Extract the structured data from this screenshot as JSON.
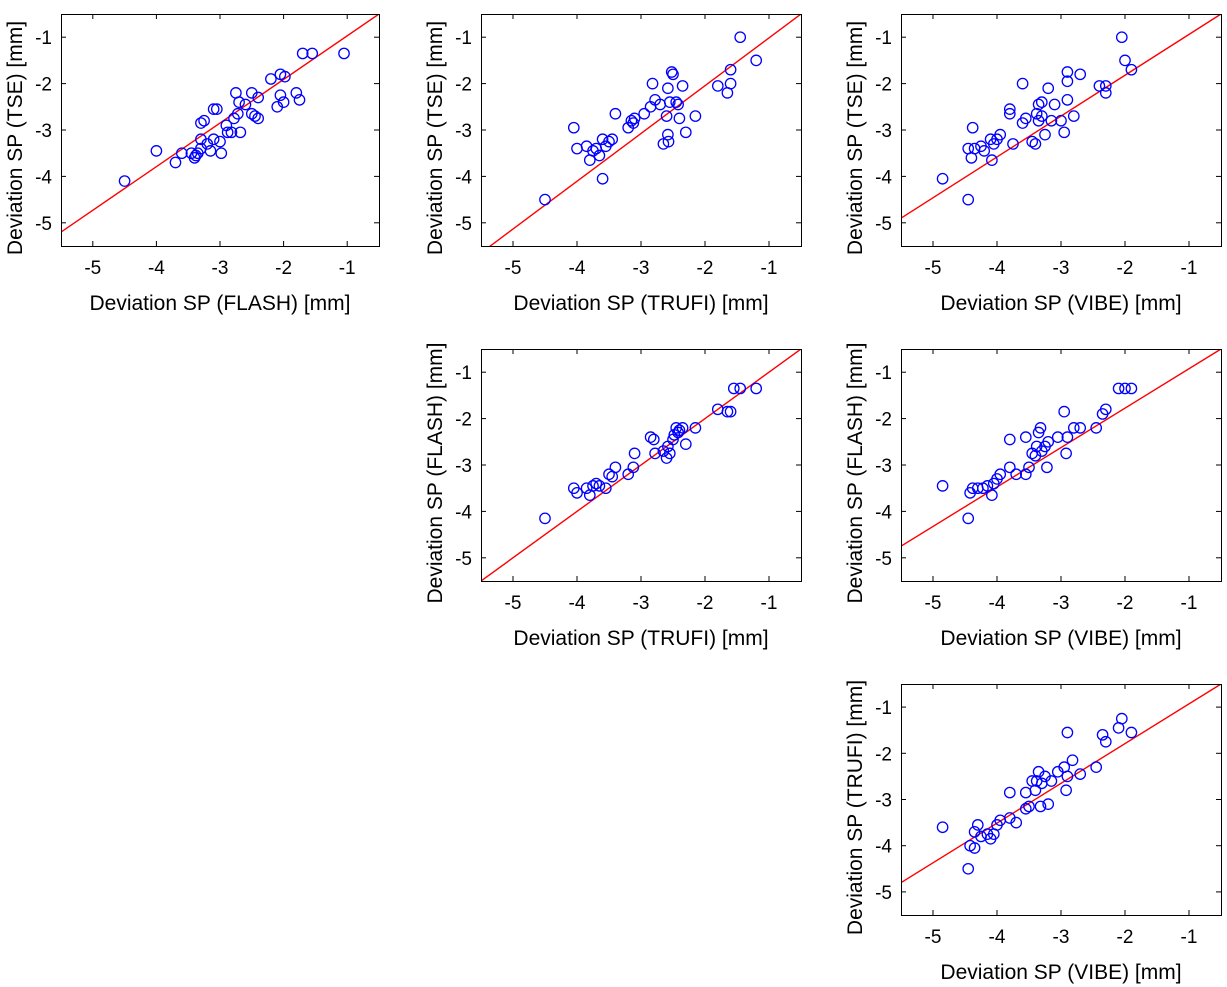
{
  "colors": {
    "points": "#0000ff",
    "fit_line": "#ff0000",
    "axes": "#000000"
  },
  "chart_data": [
    {
      "type": "scatter",
      "xlabel": "Deviation SP (FLASH) [mm]",
      "ylabel": "Deviation SP (TSE) [mm]",
      "xlim": [
        -5.5,
        -0.5
      ],
      "ylim": [
        -5.5,
        -0.5
      ],
      "xticks": [
        "-5",
        "-4",
        "-3",
        "-2",
        "-1"
      ],
      "yticks": [
        "-1",
        "-2",
        "-3",
        "-4",
        "-5"
      ],
      "fit_line": [
        [
          -5.5,
          -5.2
        ],
        [
          -0.5,
          -0.5
        ]
      ],
      "points": [
        [
          -4.5,
          -4.1
        ],
        [
          -4.0,
          -3.45
        ],
        [
          -3.7,
          -3.7
        ],
        [
          -3.6,
          -3.5
        ],
        [
          -3.45,
          -3.5
        ],
        [
          -3.4,
          -3.6
        ],
        [
          -3.38,
          -3.55
        ],
        [
          -3.35,
          -3.5
        ],
        [
          -3.3,
          -3.4
        ],
        [
          -3.3,
          -3.2
        ],
        [
          -3.3,
          -2.85
        ],
        [
          -3.25,
          -2.8
        ],
        [
          -3.2,
          -3.3
        ],
        [
          -3.15,
          -3.45
        ],
        [
          -3.1,
          -3.2
        ],
        [
          -3.1,
          -2.55
        ],
        [
          -3.05,
          -2.55
        ],
        [
          -3.0,
          -3.25
        ],
        [
          -2.98,
          -3.5
        ],
        [
          -2.9,
          -2.9
        ],
        [
          -2.88,
          -3.05
        ],
        [
          -2.82,
          -3.05
        ],
        [
          -2.78,
          -2.75
        ],
        [
          -2.75,
          -2.2
        ],
        [
          -2.72,
          -2.65
        ],
        [
          -2.7,
          -2.4
        ],
        [
          -2.68,
          -3.05
        ],
        [
          -2.6,
          -2.45
        ],
        [
          -2.5,
          -2.2
        ],
        [
          -2.5,
          -2.65
        ],
        [
          -2.45,
          -2.7
        ],
        [
          -2.4,
          -2.3
        ],
        [
          -2.4,
          -2.75
        ],
        [
          -2.2,
          -1.9
        ],
        [
          -2.1,
          -2.5
        ],
        [
          -2.05,
          -1.8
        ],
        [
          -2.05,
          -2.25
        ],
        [
          -2.0,
          -2.4
        ],
        [
          -1.98,
          -1.85
        ],
        [
          -1.8,
          -2.2
        ],
        [
          -1.75,
          -2.35
        ],
        [
          -1.7,
          -1.35
        ],
        [
          -1.55,
          -1.35
        ],
        [
          -1.05,
          -1.35
        ]
      ]
    },
    {
      "type": "scatter",
      "xlabel": "Deviation SP (TRUFI) [mm]",
      "ylabel": "Deviation SP (TSE) [mm]",
      "xlim": [
        -5.5,
        -0.5
      ],
      "ylim": [
        -5.5,
        -0.5
      ],
      "xticks": [
        "-5",
        "-4",
        "-3",
        "-2",
        "-1"
      ],
      "yticks": [
        "-1",
        "-2",
        "-3",
        "-4",
        "-5"
      ],
      "fit_line": [
        [
          -5.5,
          -5.65
        ],
        [
          -0.5,
          -0.5
        ]
      ],
      "points": [
        [
          -4.5,
          -4.5
        ],
        [
          -4.05,
          -2.95
        ],
        [
          -4.0,
          -3.4
        ],
        [
          -3.85,
          -3.35
        ],
        [
          -3.8,
          -3.65
        ],
        [
          -3.75,
          -3.45
        ],
        [
          -3.7,
          -3.4
        ],
        [
          -3.65,
          -3.55
        ],
        [
          -3.6,
          -3.2
        ],
        [
          -3.6,
          -4.05
        ],
        [
          -3.55,
          -3.35
        ],
        [
          -3.5,
          -3.25
        ],
        [
          -3.45,
          -3.2
        ],
        [
          -3.4,
          -2.65
        ],
        [
          -3.2,
          -2.95
        ],
        [
          -3.15,
          -2.8
        ],
        [
          -3.12,
          -2.85
        ],
        [
          -3.1,
          -2.75
        ],
        [
          -2.95,
          -2.65
        ],
        [
          -2.85,
          -2.5
        ],
        [
          -2.82,
          -2.0
        ],
        [
          -2.78,
          -2.35
        ],
        [
          -2.7,
          -2.45
        ],
        [
          -2.65,
          -3.3
        ],
        [
          -2.6,
          -2.7
        ],
        [
          -2.58,
          -2.1
        ],
        [
          -2.58,
          -3.1
        ],
        [
          -2.57,
          -3.25
        ],
        [
          -2.55,
          -2.4
        ],
        [
          -2.52,
          -1.75
        ],
        [
          -2.5,
          -1.8
        ],
        [
          -2.45,
          -2.4
        ],
        [
          -2.42,
          -2.45
        ],
        [
          -2.4,
          -2.75
        ],
        [
          -2.35,
          -2.05
        ],
        [
          -2.3,
          -3.05
        ],
        [
          -2.15,
          -2.7
        ],
        [
          -1.8,
          -2.05
        ],
        [
          -1.65,
          -2.2
        ],
        [
          -1.6,
          -1.7
        ],
        [
          -1.6,
          -2.0
        ],
        [
          -1.45,
          -1.0
        ],
        [
          -1.2,
          -1.5
        ]
      ]
    },
    {
      "type": "scatter",
      "xlabel": "Deviation SP (VIBE) [mm]",
      "ylabel": "Deviation SP (TSE) [mm]",
      "xlim": [
        -5.5,
        -0.5
      ],
      "ylim": [
        -5.5,
        -0.5
      ],
      "xticks": [
        "-5",
        "-4",
        "-3",
        "-2",
        "-1"
      ],
      "yticks": [
        "-1",
        "-2",
        "-3",
        "-4",
        "-5"
      ],
      "fit_line": [
        [
          -5.5,
          -4.9
        ],
        [
          -0.5,
          -0.5
        ]
      ],
      "points": [
        [
          -4.85,
          -4.05
        ],
        [
          -4.45,
          -4.5
        ],
        [
          -4.45,
          -3.4
        ],
        [
          -4.4,
          -3.6
        ],
        [
          -4.38,
          -2.95
        ],
        [
          -4.35,
          -3.4
        ],
        [
          -4.25,
          -3.35
        ],
        [
          -4.2,
          -3.45
        ],
        [
          -4.1,
          -3.2
        ],
        [
          -4.08,
          -3.65
        ],
        [
          -4.05,
          -3.3
        ],
        [
          -4.0,
          -3.2
        ],
        [
          -3.95,
          -3.1
        ],
        [
          -3.8,
          -2.55
        ],
        [
          -3.8,
          -2.65
        ],
        [
          -3.75,
          -3.3
        ],
        [
          -3.6,
          -2.85
        ],
        [
          -3.6,
          -2.0
        ],
        [
          -3.55,
          -2.75
        ],
        [
          -3.45,
          -3.25
        ],
        [
          -3.4,
          -3.3
        ],
        [
          -3.38,
          -2.65
        ],
        [
          -3.35,
          -2.45
        ],
        [
          -3.35,
          -2.8
        ],
        [
          -3.3,
          -2.4
        ],
        [
          -3.3,
          -2.7
        ],
        [
          -3.25,
          -3.1
        ],
        [
          -3.2,
          -2.1
        ],
        [
          -3.15,
          -2.8
        ],
        [
          -3.1,
          -2.45
        ],
        [
          -3.0,
          -2.8
        ],
        [
          -2.95,
          -3.05
        ],
        [
          -2.9,
          -2.35
        ],
        [
          -2.9,
          -1.95
        ],
        [
          -2.9,
          -1.75
        ],
        [
          -2.8,
          -2.7
        ],
        [
          -2.7,
          -1.8
        ],
        [
          -2.4,
          -2.05
        ],
        [
          -2.3,
          -2.2
        ],
        [
          -2.3,
          -2.05
        ],
        [
          -2.05,
          -1.0
        ],
        [
          -2.0,
          -1.5
        ],
        [
          -1.9,
          -1.7
        ]
      ]
    },
    {
      "type": "scatter",
      "xlabel": "Deviation SP (TRUFI) [mm]",
      "ylabel": "Deviation SP (FLASH) [mm]",
      "xlim": [
        -5.5,
        -0.5
      ],
      "ylim": [
        -5.5,
        -0.5
      ],
      "xticks": [
        "-5",
        "-4",
        "-3",
        "-2",
        "-1"
      ],
      "yticks": [
        "-1",
        "-2",
        "-3",
        "-4",
        "-5"
      ],
      "fit_line": [
        [
          -5.5,
          -5.5
        ],
        [
          -0.5,
          -0.5
        ]
      ],
      "points": [
        [
          -4.5,
          -4.15
        ],
        [
          -4.05,
          -3.5
        ],
        [
          -4.0,
          -3.6
        ],
        [
          -3.85,
          -3.5
        ],
        [
          -3.8,
          -3.65
        ],
        [
          -3.75,
          -3.45
        ],
        [
          -3.7,
          -3.4
        ],
        [
          -3.65,
          -3.45
        ],
        [
          -3.55,
          -3.5
        ],
        [
          -3.5,
          -3.2
        ],
        [
          -3.45,
          -3.25
        ],
        [
          -3.4,
          -3.05
        ],
        [
          -3.2,
          -3.2
        ],
        [
          -3.12,
          -3.05
        ],
        [
          -3.1,
          -2.75
        ],
        [
          -2.85,
          -2.4
        ],
        [
          -2.8,
          -2.45
        ],
        [
          -2.78,
          -2.75
        ],
        [
          -2.65,
          -2.7
        ],
        [
          -2.6,
          -2.85
        ],
        [
          -2.58,
          -2.6
        ],
        [
          -2.55,
          -2.75
        ],
        [
          -2.5,
          -2.45
        ],
        [
          -2.48,
          -2.35
        ],
        [
          -2.45,
          -2.2
        ],
        [
          -2.42,
          -2.3
        ],
        [
          -2.4,
          -2.25
        ],
        [
          -2.35,
          -2.2
        ],
        [
          -2.3,
          -2.55
        ],
        [
          -2.15,
          -2.2
        ],
        [
          -1.8,
          -1.8
        ],
        [
          -1.65,
          -1.85
        ],
        [
          -1.6,
          -1.85
        ],
        [
          -1.55,
          -1.35
        ],
        [
          -1.45,
          -1.35
        ],
        [
          -1.2,
          -1.35
        ]
      ]
    },
    {
      "type": "scatter",
      "xlabel": "Deviation SP (VIBE) [mm]",
      "ylabel": "Deviation SP (FLASH) [mm]",
      "xlim": [
        -5.5,
        -0.5
      ],
      "ylim": [
        -5.5,
        -0.5
      ],
      "xticks": [
        "-5",
        "-4",
        "-3",
        "-2",
        "-1"
      ],
      "yticks": [
        "-1",
        "-2",
        "-3",
        "-4",
        "-5"
      ],
      "fit_line": [
        [
          -5.5,
          -4.75
        ],
        [
          -0.5,
          -0.5
        ]
      ],
      "points": [
        [
          -4.85,
          -3.45
        ],
        [
          -4.45,
          -4.15
        ],
        [
          -4.42,
          -3.6
        ],
        [
          -4.38,
          -3.5
        ],
        [
          -4.3,
          -3.5
        ],
        [
          -4.22,
          -3.5
        ],
        [
          -4.15,
          -3.45
        ],
        [
          -4.08,
          -3.65
        ],
        [
          -4.05,
          -3.4
        ],
        [
          -4.0,
          -3.3
        ],
        [
          -3.95,
          -3.2
        ],
        [
          -3.8,
          -3.05
        ],
        [
          -3.8,
          -2.45
        ],
        [
          -3.7,
          -3.2
        ],
        [
          -3.55,
          -3.2
        ],
        [
          -3.55,
          -2.4
        ],
        [
          -3.5,
          -3.05
        ],
        [
          -3.45,
          -2.75
        ],
        [
          -3.4,
          -2.8
        ],
        [
          -3.38,
          -2.6
        ],
        [
          -3.35,
          -2.3
        ],
        [
          -3.32,
          -2.2
        ],
        [
          -3.3,
          -2.7
        ],
        [
          -3.25,
          -2.6
        ],
        [
          -3.22,
          -3.05
        ],
        [
          -3.2,
          -2.5
        ],
        [
          -3.05,
          -2.4
        ],
        [
          -2.95,
          -1.85
        ],
        [
          -2.92,
          -2.75
        ],
        [
          -2.9,
          -2.4
        ],
        [
          -2.8,
          -2.2
        ],
        [
          -2.7,
          -2.2
        ],
        [
          -2.45,
          -2.2
        ],
        [
          -2.35,
          -1.9
        ],
        [
          -2.3,
          -1.8
        ],
        [
          -2.1,
          -1.35
        ],
        [
          -2.0,
          -1.35
        ],
        [
          -1.9,
          -1.35
        ]
      ]
    },
    {
      "type": "scatter",
      "xlabel": "Deviation SP (VIBE) [mm]",
      "ylabel": "Deviation SP (TRUFI) [mm]",
      "xlim": [
        -5.5,
        -0.5
      ],
      "ylim": [
        -5.5,
        -0.5
      ],
      "xticks": [
        "-5",
        "-4",
        "-3",
        "-2",
        "-1"
      ],
      "yticks": [
        "-1",
        "-2",
        "-3",
        "-4",
        "-5"
      ],
      "fit_line": [
        [
          -5.5,
          -4.8
        ],
        [
          -0.5,
          -0.5
        ]
      ],
      "points": [
        [
          -4.85,
          -3.6
        ],
        [
          -4.45,
          -4.5
        ],
        [
          -4.42,
          -4.0
        ],
        [
          -4.35,
          -4.05
        ],
        [
          -4.35,
          -3.7
        ],
        [
          -4.3,
          -3.55
        ],
        [
          -4.25,
          -3.8
        ],
        [
          -4.15,
          -3.75
        ],
        [
          -4.1,
          -3.85
        ],
        [
          -4.05,
          -3.75
        ],
        [
          -4.0,
          -3.55
        ],
        [
          -3.95,
          -3.45
        ],
        [
          -3.8,
          -3.4
        ],
        [
          -3.8,
          -2.85
        ],
        [
          -3.7,
          -3.5
        ],
        [
          -3.55,
          -3.2
        ],
        [
          -3.55,
          -2.85
        ],
        [
          -3.5,
          -3.15
        ],
        [
          -3.45,
          -2.6
        ],
        [
          -3.4,
          -2.8
        ],
        [
          -3.38,
          -2.6
        ],
        [
          -3.35,
          -2.4
        ],
        [
          -3.32,
          -3.15
        ],
        [
          -3.3,
          -2.65
        ],
        [
          -3.25,
          -2.5
        ],
        [
          -3.2,
          -3.1
        ],
        [
          -3.15,
          -2.6
        ],
        [
          -3.05,
          -2.4
        ],
        [
          -2.95,
          -2.3
        ],
        [
          -2.92,
          -2.8
        ],
        [
          -2.9,
          -1.55
        ],
        [
          -2.9,
          -2.5
        ],
        [
          -2.82,
          -2.15
        ],
        [
          -2.7,
          -2.45
        ],
        [
          -2.45,
          -2.3
        ],
        [
          -2.35,
          -1.6
        ],
        [
          -2.3,
          -1.75
        ],
        [
          -2.1,
          -1.45
        ],
        [
          -2.05,
          -1.25
        ],
        [
          -1.9,
          -1.55
        ]
      ]
    }
  ]
}
